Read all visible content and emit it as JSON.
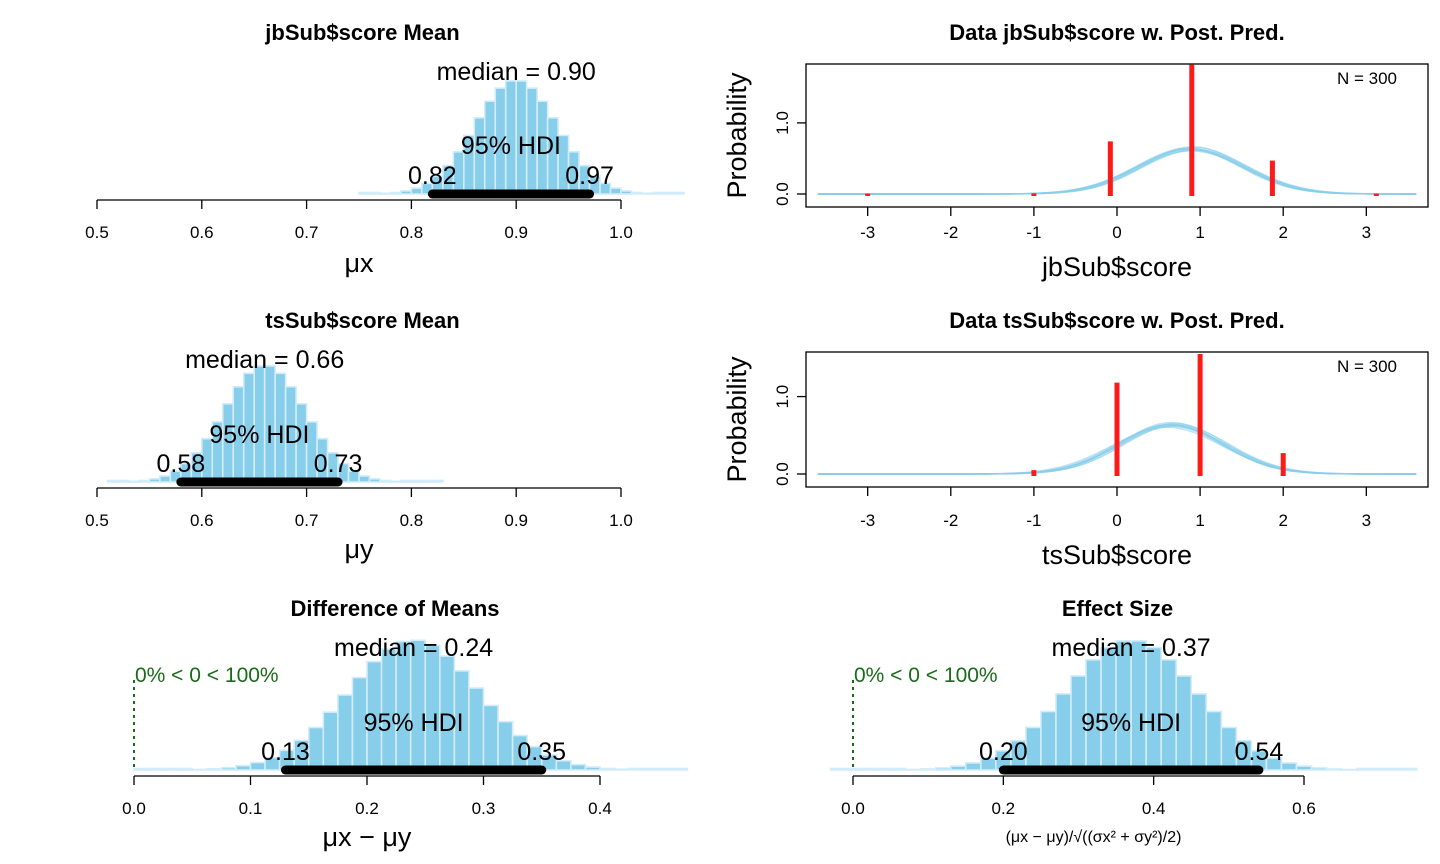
{
  "chart_data": [
    {
      "id": "jb_mean",
      "type": "histogram",
      "title": "jbSub$score Mean",
      "xlabel": "μx",
      "xlim": [
        0.5,
        1.0
      ],
      "ticks": [
        0.5,
        0.6,
        0.7,
        0.8,
        0.9,
        1.0
      ],
      "tick_labels": [
        "0.5",
        "0.6",
        "0.7",
        "0.8",
        "0.9",
        "1.0"
      ],
      "center": 0.9,
      "sd": 0.039,
      "bin_width": 0.01,
      "range": [
        0.75,
        1.06
      ],
      "median_text": "median = 0.90",
      "hdi_text": "95% HDI",
      "hdi": [
        0.82,
        0.97
      ],
      "hdi_labels": [
        "0.82",
        "0.97"
      ]
    },
    {
      "id": "jb_ppc",
      "type": "line",
      "title": "Data jbSub$score w. Post. Pred.",
      "xlabel": "jbSub$score",
      "ylabel": "Probability",
      "xlim": [
        -3.6,
        3.6
      ],
      "ylim": [
        0,
        1.8
      ],
      "xticks": [
        -3,
        -2,
        -1,
        0,
        1,
        2,
        3
      ],
      "xtick_labels": [
        "-3",
        "-2",
        "-1",
        "0",
        "1",
        "2",
        "3"
      ],
      "yticks": [
        0.0,
        1.0
      ],
      "ytick_labels": [
        "0.0",
        "1.0"
      ],
      "n_label": "N = 300",
      "data_spikes": [
        {
          "x": -3,
          "y": 0.005
        },
        {
          "x": -1,
          "y": 0.01
        },
        {
          "x": -0.08,
          "y": 0.74
        },
        {
          "x": 0.9,
          "y": 1.82
        },
        {
          "x": 1.87,
          "y": 0.47
        },
        {
          "x": 3.12,
          "y": 0.005
        }
      ],
      "curves": [
        {
          "mean": 0.86,
          "sd": 0.64
        },
        {
          "mean": 0.88,
          "sd": 0.62
        },
        {
          "mean": 0.9,
          "sd": 0.63
        },
        {
          "mean": 0.92,
          "sd": 0.65
        },
        {
          "mean": 0.94,
          "sd": 0.61
        },
        {
          "mean": 0.89,
          "sd": 0.66
        },
        {
          "mean": 0.91,
          "sd": 0.6
        },
        {
          "mean": 0.87,
          "sd": 0.63
        },
        {
          "mean": 0.95,
          "sd": 0.64
        },
        {
          "mean": 0.85,
          "sd": 0.62
        }
      ]
    },
    {
      "id": "ts_mean",
      "type": "histogram",
      "title": "tsSub$score Mean",
      "xlabel": "μy",
      "xlim": [
        0.5,
        1.0
      ],
      "ticks": [
        0.5,
        0.6,
        0.7,
        0.8,
        0.9,
        1.0
      ],
      "tick_labels": [
        "0.5",
        "0.6",
        "0.7",
        "0.8",
        "0.9",
        "1.0"
      ],
      "center": 0.66,
      "sd": 0.039,
      "bin_width": 0.01,
      "range": [
        0.51,
        0.83
      ],
      "median_text": "median = 0.66",
      "hdi_text": "95% HDI",
      "hdi": [
        0.58,
        0.73
      ],
      "hdi_labels": [
        "0.58",
        "0.73"
      ]
    },
    {
      "id": "ts_ppc",
      "type": "line",
      "title": "Data tsSub$score w. Post. Pred.",
      "xlabel": "tsSub$score",
      "ylabel": "Probability",
      "xlim": [
        -3.6,
        3.6
      ],
      "ylim": [
        0,
        1.55
      ],
      "xticks": [
        -3,
        -2,
        -1,
        0,
        1,
        2,
        3
      ],
      "xtick_labels": [
        "-3",
        "-2",
        "-1",
        "0",
        "1",
        "2",
        "3"
      ],
      "yticks": [
        0.0,
        1.0
      ],
      "ytick_labels": [
        "0.0",
        "1.0"
      ],
      "n_label": "N = 300",
      "data_spikes": [
        {
          "x": -1,
          "y": 0.05
        },
        {
          "x": 0,
          "y": 1.18
        },
        {
          "x": 1,
          "y": 1.55
        },
        {
          "x": 2,
          "y": 0.27
        }
      ],
      "curves": [
        {
          "mean": 0.62,
          "sd": 0.64
        },
        {
          "mean": 0.64,
          "sd": 0.63
        },
        {
          "mean": 0.66,
          "sd": 0.62
        },
        {
          "mean": 0.68,
          "sd": 0.65
        },
        {
          "mean": 0.7,
          "sd": 0.61
        },
        {
          "mean": 0.6,
          "sd": 0.66
        },
        {
          "mean": 0.65,
          "sd": 0.6
        },
        {
          "mean": 0.67,
          "sd": 0.64
        },
        {
          "mean": 0.72,
          "sd": 0.63
        },
        {
          "mean": 0.63,
          "sd": 0.62
        }
      ]
    },
    {
      "id": "diff",
      "type": "histogram",
      "title": "Difference of Means",
      "xlabel": "μx − μy",
      "xlim": [
        0.0,
        0.4
      ],
      "ticks": [
        0.0,
        0.1,
        0.2,
        0.3,
        0.4
      ],
      "tick_labels": [
        "0.0",
        "0.1",
        "0.2",
        "0.3",
        "0.4"
      ],
      "center": 0.24,
      "sd": 0.056,
      "bin_width": 0.0125,
      "range": [
        0.0,
        0.475
      ],
      "median_text": "median = 0.24",
      "hdi_text": "95% HDI",
      "hdi": [
        0.13,
        0.35
      ],
      "hdi_labels": [
        "0.13",
        "0.35"
      ],
      "rope_text": "0% < 0 < 100%",
      "rope_x": 0
    },
    {
      "id": "effect",
      "type": "histogram",
      "title": "Effect Size",
      "xlabel": "(μx − μy)/√((σx² + σy²)/2)",
      "xlim": [
        0.0,
        0.6
      ],
      "ticks": [
        0.0,
        0.2,
        0.4,
        0.6
      ],
      "tick_labels": [
        "0.0",
        "0.2",
        "0.4",
        "0.6"
      ],
      "center": 0.37,
      "sd": 0.087,
      "bin_width": 0.02,
      "range": [
        -0.03,
        0.74
      ],
      "median_text": "median = 0.37",
      "hdi_text": "95% HDI",
      "hdi": [
        0.2,
        0.54
      ],
      "hdi_labels": [
        "0.20",
        "0.54"
      ],
      "rope_text": "0% < 0 < 100%",
      "rope_x": 0
    }
  ]
}
